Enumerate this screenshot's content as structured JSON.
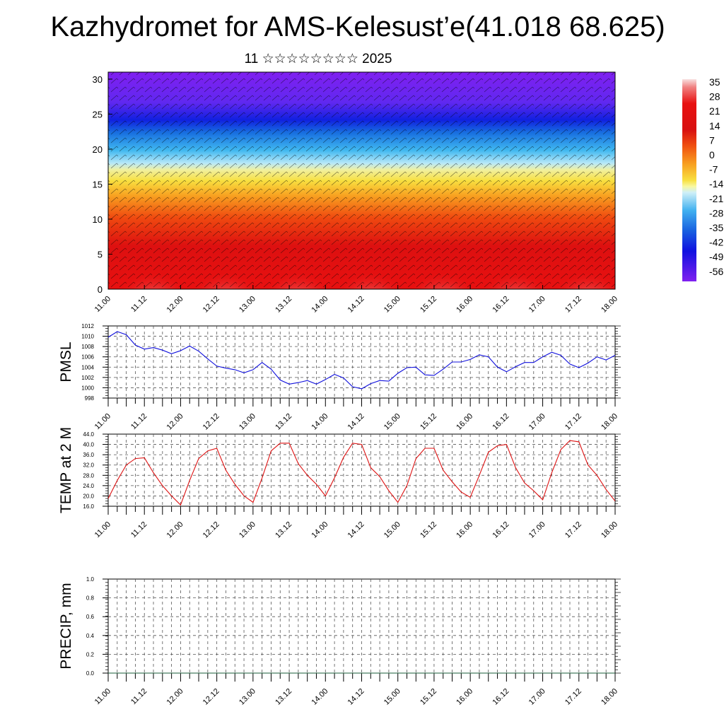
{
  "title": "Kazhydromet for AMS-Kelesust’e(41.018 68.625)",
  "subtitle": "11 ☆☆☆☆☆☆☆☆ 2025",
  "colors": {
    "pmsl_line": "#1010dd",
    "temp_line": "#dd1111",
    "precip_line": "#1a5c3a"
  },
  "chart_data": [
    {
      "type": "heatmap",
      "name": "cross-section",
      "y_ticks": [
        "0",
        "5",
        "10",
        "15",
        "20",
        "25",
        "30"
      ],
      "ylim": [
        0,
        31
      ],
      "x_ticks": [
        "11.00",
        "11.12",
        "12.00",
        "12.12",
        "13.00",
        "13.12",
        "14.00",
        "14.12",
        "15.00",
        "15.12",
        "16.00",
        "16.12",
        "17.00",
        "17.12",
        "18.00"
      ],
      "colorbar_labels": [
        "35",
        "28",
        "21",
        "14",
        "7",
        "0",
        "-7",
        "-14",
        "-21",
        "-28",
        "-35",
        "-42",
        "-49",
        "-56"
      ],
      "vectors": "wind barbs overlay"
    },
    {
      "type": "line",
      "name": "pmsl",
      "ylabel": "PMSL",
      "ylim": [
        998,
        1012
      ],
      "y_ticks": [
        "998",
        "1000",
        "1002",
        "1004",
        "1006",
        "1008",
        "1010",
        "1012"
      ],
      "x_ticks": [
        "11.00",
        "11.12",
        "12.00",
        "12.12",
        "13.00",
        "13.12",
        "14.00",
        "14.12",
        "15.00",
        "15.12",
        "16.00",
        "16.12",
        "17.00",
        "17.12",
        "18.00"
      ],
      "values": [
        1009.8,
        1010.9,
        1010.3,
        1008.3,
        1007.5,
        1007.8,
        1007.3,
        1006.6,
        1007.2,
        1008.1,
        1007.1,
        1005.6,
        1004.2,
        1003.8,
        1003.5,
        1002.9,
        1003.5,
        1004.9,
        1003.6,
        1001.5,
        1000.7,
        1001.0,
        1001.4,
        1000.7,
        1001.6,
        1002.6,
        1001.9,
        1000.2,
        999.8,
        1000.8,
        1001.4,
        1001.3,
        1002.8,
        1003.9,
        1004.0,
        1002.5,
        1002.4,
        1003.6,
        1005.0,
        1005.0,
        1005.5,
        1006.4,
        1006.0,
        1004.0,
        1003.1,
        1004.1,
        1004.9,
        1004.9,
        1006.0,
        1006.9,
        1006.3,
        1004.6,
        1003.9,
        1004.8,
        1006.0,
        1005.4,
        1006.3
      ]
    },
    {
      "type": "line",
      "name": "temp",
      "ylabel": "TEMP at 2 M",
      "ylim": [
        16,
        44
      ],
      "y_ticks": [
        "16.0",
        "20.0",
        "24.0",
        "28.0",
        "32.0",
        "36.0",
        "40.0",
        "44.0"
      ],
      "x_ticks": [
        "11.00",
        "11.12",
        "12.00",
        "12.12",
        "13.00",
        "13.12",
        "14.00",
        "14.12",
        "15.00",
        "15.12",
        "16.00",
        "16.12",
        "17.00",
        "17.12",
        "18.00"
      ],
      "values": [
        19.0,
        26.0,
        32.0,
        34.5,
        34.8,
        29.0,
        24.0,
        20.0,
        16.5,
        26.0,
        34.5,
        37.5,
        38.5,
        30.0,
        24.5,
        20.0,
        17.5,
        27.0,
        37.5,
        40.5,
        40.5,
        32.5,
        28.0,
        24.5,
        20.0,
        27.0,
        35.0,
        40.5,
        40.0,
        31.0,
        27.5,
        22.0,
        17.5,
        24.0,
        34.5,
        38.5,
        38.5,
        30.0,
        25.5,
        21.5,
        19.5,
        28.0,
        37.0,
        39.5,
        40.0,
        31.0,
        25.0,
        22.0,
        18.5,
        29.0,
        38.0,
        41.5,
        41.0,
        32.0,
        28.0,
        22.5,
        18.0
      ]
    },
    {
      "type": "line",
      "name": "precip",
      "ylabel": "PRECIP, mm",
      "ylim": [
        0,
        1
      ],
      "y_ticks": [
        "0.0",
        "0.2",
        "0.4",
        "0.6",
        "0.8",
        "1.0"
      ],
      "x_ticks": [
        "11.00",
        "11.12",
        "12.00",
        "12.12",
        "13.00",
        "13.12",
        "14.00",
        "14.12",
        "15.00",
        "15.12",
        "16.00",
        "16.12",
        "17.00",
        "17.12",
        "18.00"
      ],
      "values": [
        0,
        0,
        0,
        0,
        0,
        0,
        0,
        0,
        0,
        0,
        0,
        0,
        0,
        0,
        0
      ]
    }
  ]
}
